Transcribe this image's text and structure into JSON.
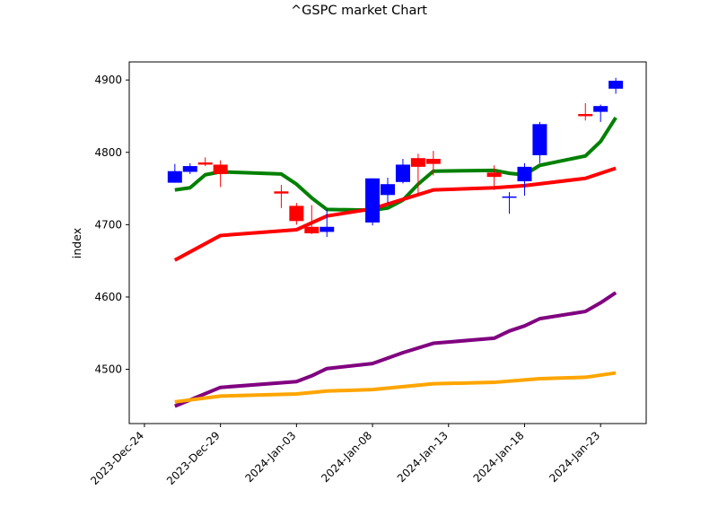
{
  "chart_data": {
    "type": "candlestick",
    "title": "^GSPC market Chart",
    "xlabel": "",
    "ylabel": "index",
    "xlim": [
      "2023-12-23",
      "2024-01-26"
    ],
    "ylim": [
      4425,
      4925
    ],
    "grid": false,
    "legend": "none",
    "x_ticks": [
      "2023-Dec-24",
      "2023-Dec-29",
      "2024-Jan-03",
      "2024-Jan-08",
      "2024-Jan-13",
      "2024-Jan-18",
      "2024-Jan-23"
    ],
    "y_ticks": [
      4500,
      4600,
      4700,
      4800,
      4900
    ],
    "colors": {
      "up": "#0000ff",
      "down": "#ff0000",
      "green_line": "#008000",
      "red_line": "#ff0000",
      "purple_line": "#800080",
      "orange_line": "#ffa500"
    },
    "candles": [
      {
        "date": "2023-12-26",
        "open": 4758,
        "high": 4784,
        "low": 4758,
        "close": 4774
      },
      {
        "date": "2023-12-27",
        "open": 4773,
        "high": 4785,
        "low": 4770,
        "close": 4781
      },
      {
        "date": "2023-12-28",
        "open": 4786,
        "high": 4793,
        "low": 4781,
        "close": 4783
      },
      {
        "date": "2023-12-29",
        "open": 4783,
        "high": 4789,
        "low": 4752,
        "close": 4770
      },
      {
        "date": "2024-01-02",
        "open": 4746,
        "high": 4755,
        "low": 4723,
        "close": 4743
      },
      {
        "date": "2024-01-03",
        "open": 4726,
        "high": 4730,
        "low": 4700,
        "close": 4705
      },
      {
        "date": "2024-01-04",
        "open": 4697,
        "high": 4727,
        "low": 4687,
        "close": 4688
      },
      {
        "date": "2024-01-05",
        "open": 4690,
        "high": 4721,
        "low": 4683,
        "close": 4697
      },
      {
        "date": "2024-01-08",
        "open": 4703,
        "high": 4764,
        "low": 4699,
        "close": 4764
      },
      {
        "date": "2024-01-09",
        "open": 4741,
        "high": 4765,
        "low": 4730,
        "close": 4756
      },
      {
        "date": "2024-01-10",
        "open": 4759,
        "high": 4791,
        "low": 4757,
        "close": 4783
      },
      {
        "date": "2024-01-11",
        "open": 4792,
        "high": 4798,
        "low": 4739,
        "close": 4780
      },
      {
        "date": "2024-01-12",
        "open": 4791,
        "high": 4802,
        "low": 4768,
        "close": 4784
      },
      {
        "date": "2024-01-16",
        "open": 4772,
        "high": 4782,
        "low": 4748,
        "close": 4766
      },
      {
        "date": "2024-01-17",
        "open": 4739,
        "high": 4745,
        "low": 4715,
        "close": 4739
      },
      {
        "date": "2024-01-18",
        "open": 4760,
        "high": 4785,
        "low": 4740,
        "close": 4780
      },
      {
        "date": "2024-01-19",
        "open": 4796,
        "high": 4842,
        "low": 4785,
        "close": 4839
      },
      {
        "date": "2024-01-22",
        "open": 4853,
        "high": 4868,
        "low": 4844,
        "close": 4850
      },
      {
        "date": "2024-01-23",
        "open": 4856,
        "high": 4866,
        "low": 4842,
        "close": 4864
      },
      {
        "date": "2024-01-24",
        "open": 4888,
        "high": 4903,
        "low": 4881,
        "close": 4899
      }
    ],
    "series": [
      {
        "color": "#008000",
        "points": [
          [
            "2023-12-26",
            4748
          ],
          [
            "2023-12-27",
            4751
          ],
          [
            "2023-12-28",
            4769
          ],
          [
            "2023-12-29",
            4773
          ],
          [
            "2024-01-02",
            4770
          ],
          [
            "2024-01-03",
            4756
          ],
          [
            "2024-01-04",
            4737
          ],
          [
            "2024-01-05",
            4721
          ],
          [
            "2024-01-08",
            4720
          ],
          [
            "2024-01-09",
            4723
          ],
          [
            "2024-01-10",
            4734
          ],
          [
            "2024-01-11",
            4756
          ],
          [
            "2024-01-12",
            4774
          ],
          [
            "2024-01-16",
            4775
          ],
          [
            "2024-01-17",
            4771
          ],
          [
            "2024-01-18",
            4769
          ],
          [
            "2024-01-19",
            4782
          ],
          [
            "2024-01-22",
            4795
          ],
          [
            "2024-01-23",
            4815
          ],
          [
            "2024-01-24",
            4848
          ]
        ]
      },
      {
        "color": "#ff0000",
        "points": [
          [
            "2023-12-26",
            4651
          ],
          [
            "2023-12-29",
            4685
          ],
          [
            "2024-01-03",
            4693
          ],
          [
            "2024-01-05",
            4712
          ],
          [
            "2024-01-08",
            4722
          ],
          [
            "2024-01-12",
            4748
          ],
          [
            "2024-01-16",
            4751
          ],
          [
            "2024-01-18",
            4754
          ],
          [
            "2024-01-22",
            4764
          ],
          [
            "2024-01-24",
            4778
          ]
        ]
      },
      {
        "color": "#800080",
        "points": [
          [
            "2023-12-26",
            4449
          ],
          [
            "2023-12-29",
            4475
          ],
          [
            "2024-01-03",
            4483
          ],
          [
            "2024-01-04",
            4491
          ],
          [
            "2024-01-05",
            4501
          ],
          [
            "2024-01-08",
            4508
          ],
          [
            "2024-01-10",
            4523
          ],
          [
            "2024-01-12",
            4536
          ],
          [
            "2024-01-16",
            4543
          ],
          [
            "2024-01-17",
            4553
          ],
          [
            "2024-01-18",
            4560
          ],
          [
            "2024-01-19",
            4570
          ],
          [
            "2024-01-22",
            4580
          ],
          [
            "2024-01-23",
            4592
          ],
          [
            "2024-01-24",
            4606
          ]
        ]
      },
      {
        "color": "#ffa500",
        "points": [
          [
            "2023-12-26",
            4455
          ],
          [
            "2023-12-29",
            4463
          ],
          [
            "2024-01-03",
            4466
          ],
          [
            "2024-01-05",
            4470
          ],
          [
            "2024-01-08",
            4472
          ],
          [
            "2024-01-12",
            4480
          ],
          [
            "2024-01-16",
            4482
          ],
          [
            "2024-01-19",
            4487
          ],
          [
            "2024-01-22",
            4489
          ],
          [
            "2024-01-24",
            4495
          ]
        ]
      }
    ]
  }
}
